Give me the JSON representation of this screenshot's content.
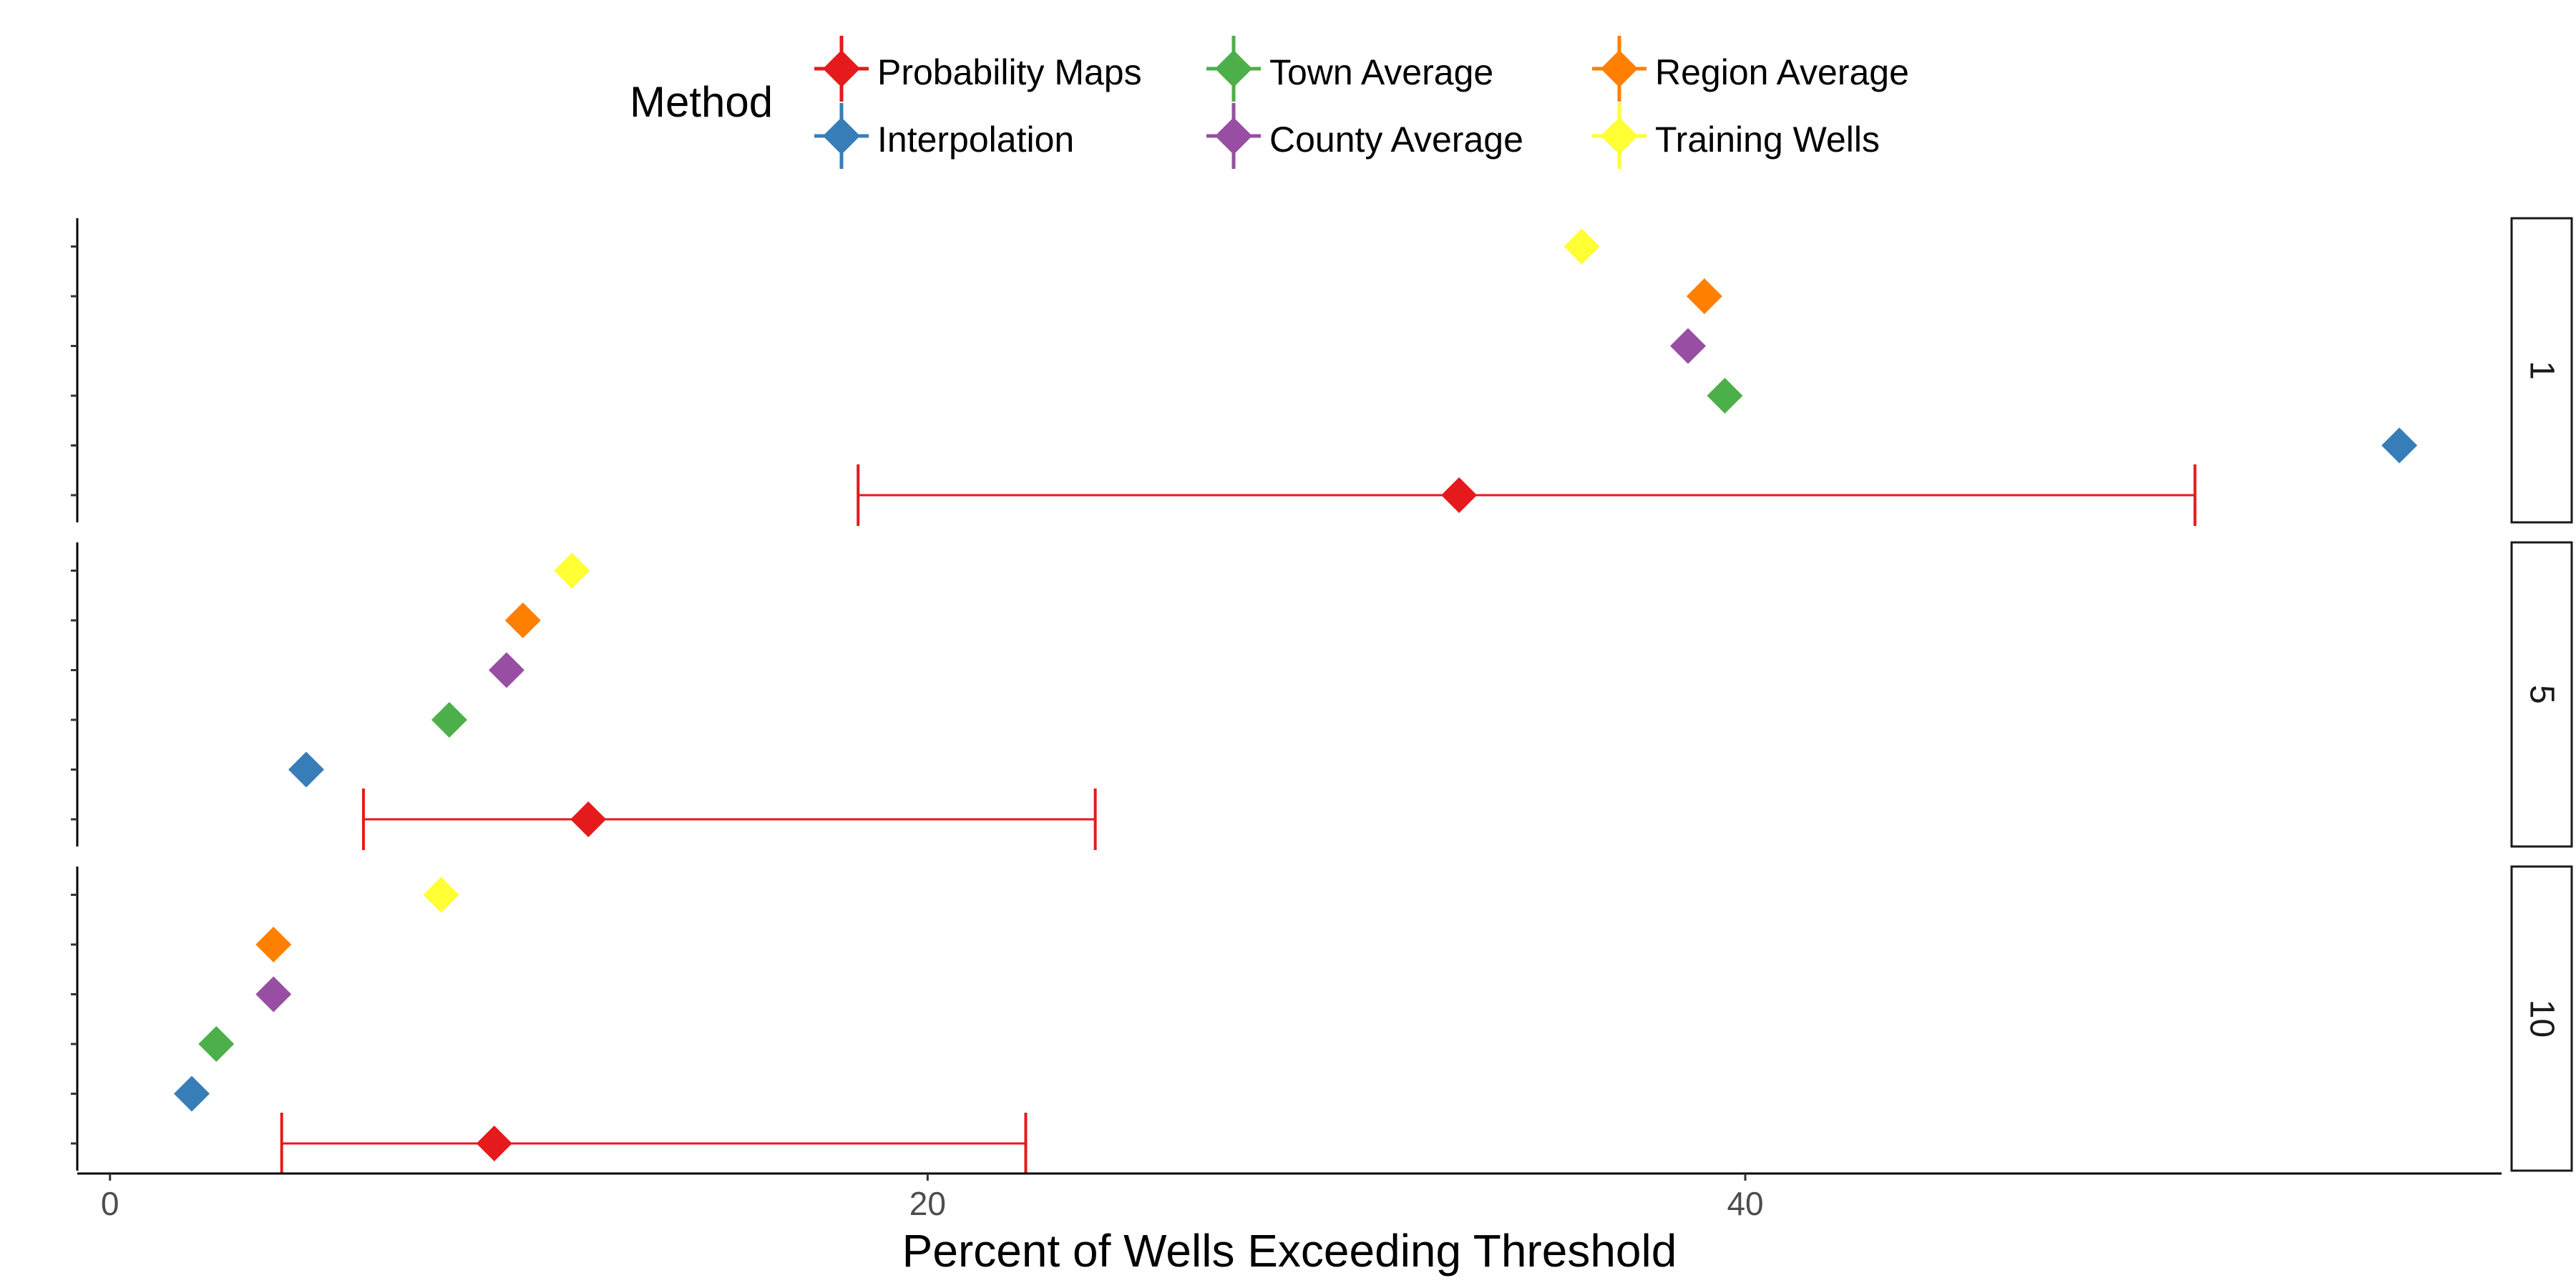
{
  "legend": {
    "title": "Method",
    "items": [
      {
        "label": "Probability Maps",
        "color": "#e41a1c",
        "icon": "diamond-errorbar-icon"
      },
      {
        "label": "Interpolation",
        "color": "#377eb8",
        "icon": "diamond-errorbar-icon"
      },
      {
        "label": "Town Average",
        "color": "#4daf4a",
        "icon": "diamond-errorbar-icon"
      },
      {
        "label": "County Average",
        "color": "#984ea3",
        "icon": "diamond-errorbar-icon"
      },
      {
        "label": "Region Average",
        "color": "#ff7f00",
        "icon": "diamond-errorbar-icon"
      },
      {
        "label": "Training Wells",
        "color": "#ffff33",
        "icon": "diamond-errorbar-icon"
      }
    ]
  },
  "chart_data": {
    "type": "scatter",
    "xlabel": "Percent of Wells Exceeding Threshold",
    "ylabel": "",
    "xlim": [
      -0.8,
      58.5
    ],
    "xticks": [
      0,
      20,
      40
    ],
    "grid": false,
    "legend_position": "top",
    "method_order": [
      "Probability Maps",
      "Interpolation",
      "Town Average",
      "County Average",
      "Region Average",
      "Training Wells"
    ],
    "facets": [
      {
        "label": "1",
        "points": [
          {
            "method": "Probability Maps",
            "x": 33.0,
            "lower": 18.3,
            "upper": 51.0
          },
          {
            "method": "Interpolation",
            "x": 56.0
          },
          {
            "method": "Town Average",
            "x": 39.5
          },
          {
            "method": "County Average",
            "x": 38.6
          },
          {
            "method": "Region Average",
            "x": 39.0
          },
          {
            "method": "Training Wells",
            "x": 36.0
          }
        ]
      },
      {
        "label": "5",
        "points": [
          {
            "method": "Probability Maps",
            "x": 11.7,
            "lower": 6.2,
            "upper": 24.1
          },
          {
            "method": "Interpolation",
            "x": 4.8
          },
          {
            "method": "Town Average",
            "x": 8.3
          },
          {
            "method": "County Average",
            "x": 9.7
          },
          {
            "method": "Region Average",
            "x": 10.1
          },
          {
            "method": "Training Wells",
            "x": 11.3
          }
        ]
      },
      {
        "label": "10",
        "points": [
          {
            "method": "Probability Maps",
            "x": 9.4,
            "lower": 4.2,
            "upper": 22.4
          },
          {
            "method": "Interpolation",
            "x": 2.0
          },
          {
            "method": "Town Average",
            "x": 2.6
          },
          {
            "method": "County Average",
            "x": 4.0
          },
          {
            "method": "Region Average",
            "x": 4.0
          },
          {
            "method": "Training Wells",
            "x": 8.1
          }
        ]
      }
    ]
  }
}
